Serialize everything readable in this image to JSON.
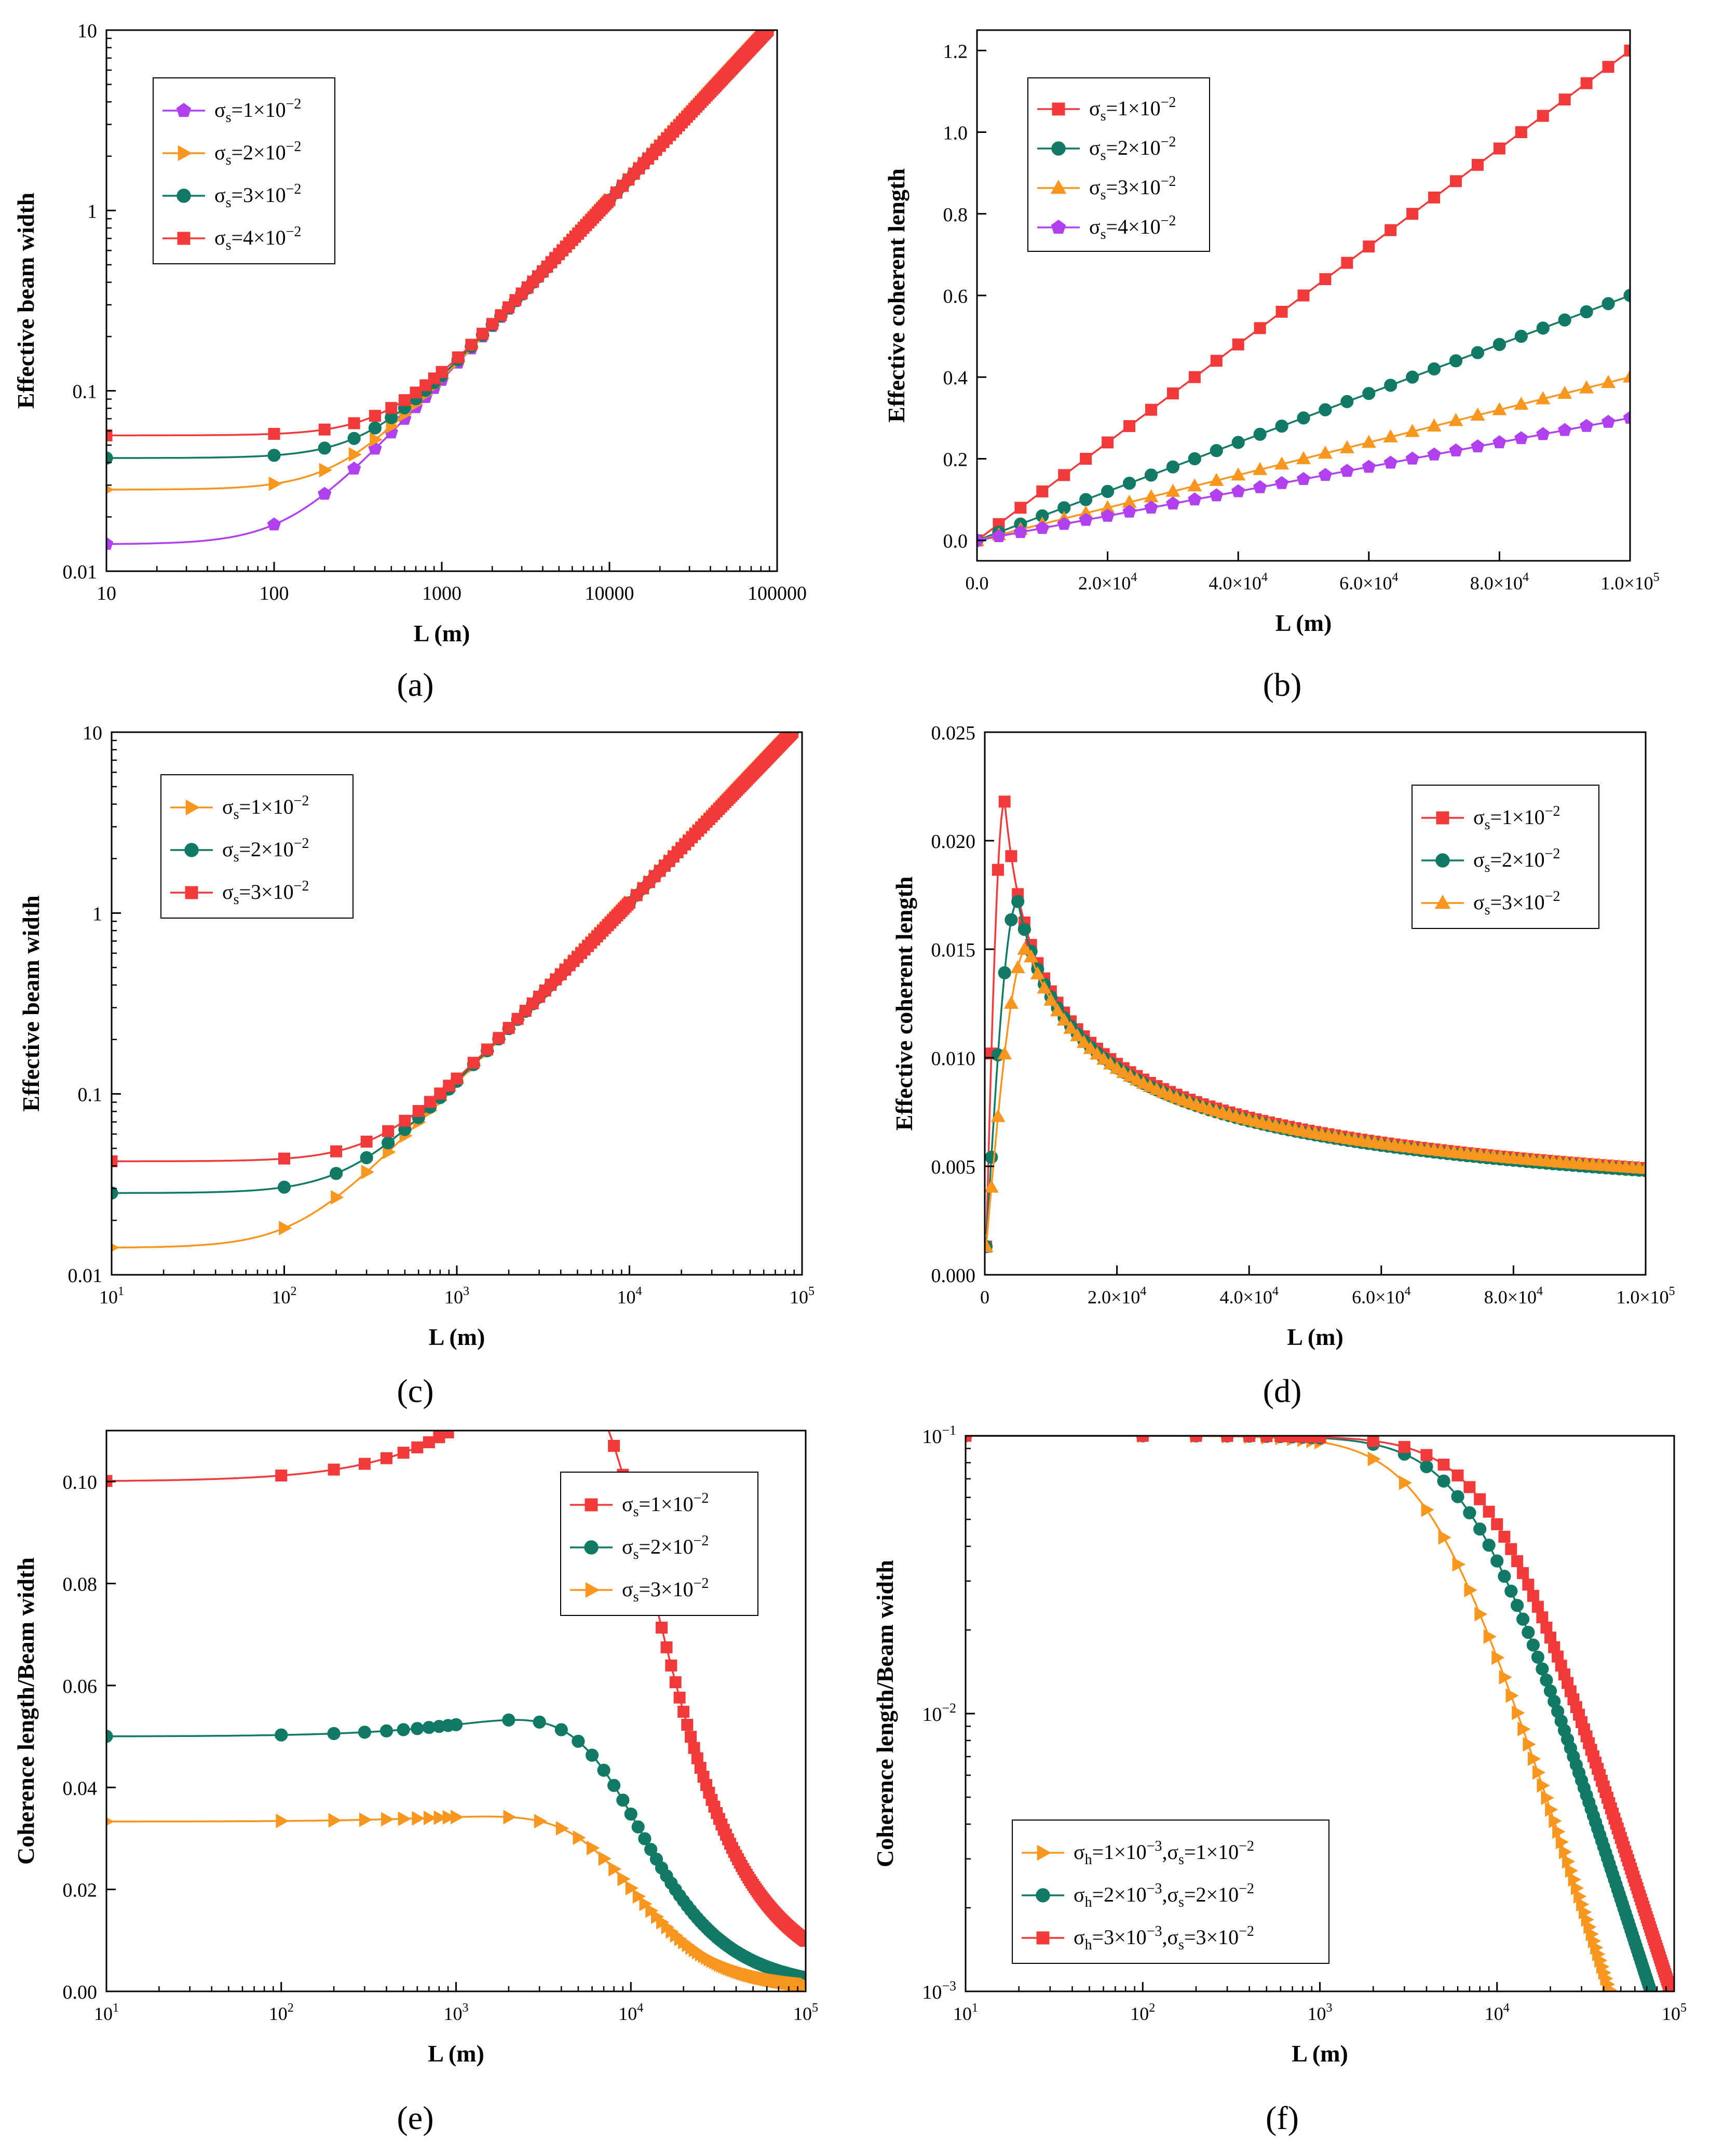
{
  "figure": {
    "panel_labels": [
      "(a)",
      "(b)",
      "(c)",
      "(d)",
      "(e)",
      "(f)"
    ]
  },
  "colors": {
    "purple": "#B040F0",
    "orange": "#F8961E",
    "teal": "#117A65",
    "red": "#F23A3A"
  },
  "chart_data": [
    {
      "id": "a",
      "type": "line",
      "xscale": "log",
      "yscale": "log",
      "xlim": [
        10,
        100000
      ],
      "ylim": [
        0.01,
        10
      ],
      "xticks": [
        10,
        100,
        1000,
        10000,
        100000
      ],
      "xtick_labels": [
        "10",
        "100",
        "1000",
        "10000",
        "100000"
      ],
      "yticks": [
        0.01,
        0.1,
        1,
        10
      ],
      "ytick_labels": [
        "0.01",
        "0.1",
        "1",
        "10"
      ],
      "xlabel": "L (m)",
      "ylabel": "Effective beam width",
      "legend_position": "top-left",
      "series": [
        {
          "name": "σs=1×10−2",
          "sym": "s",
          "coef": "1",
          "exp": "−2",
          "color": "#B040F0",
          "marker": "pentagon",
          "model": "beam",
          "w0": 0.0141,
          "k": 0.000114
        },
        {
          "name": "σs=2×10−2",
          "sym": "s",
          "coef": "2",
          "exp": "−2",
          "color": "#F8961E",
          "marker": "triangle-right",
          "model": "beam",
          "w0": 0.0283,
          "k": 0.000114
        },
        {
          "name": "σs=3×10−2",
          "sym": "s",
          "coef": "3",
          "exp": "−2",
          "color": "#117A65",
          "marker": "circle",
          "model": "beam",
          "w0": 0.0424,
          "k": 0.000114
        },
        {
          "name": "σs=4×10−2",
          "sym": "s",
          "coef": "4",
          "exp": "−2",
          "color": "#F23A3A",
          "marker": "square",
          "model": "beam",
          "w0": 0.0566,
          "k": 0.000114
        }
      ]
    },
    {
      "id": "b",
      "type": "line",
      "xscale": "linear",
      "yscale": "linear",
      "xlim": [
        0,
        100000
      ],
      "ylim": [
        -0.05,
        1.25
      ],
      "xticks": [
        0,
        20000,
        40000,
        60000,
        80000,
        100000
      ],
      "xtick_labels": [
        [
          "0.0",
          ""
        ],
        [
          "2.0×10",
          "4"
        ],
        [
          "4.0×10",
          "4"
        ],
        [
          "6.0×10",
          "4"
        ],
        [
          "8.0×10",
          "4"
        ],
        [
          "1.0×10",
          "5"
        ]
      ],
      "yticks": [
        0,
        0.2,
        0.4,
        0.6,
        0.8,
        1.0,
        1.2
      ],
      "ytick_labels": [
        "0.0",
        "0.2",
        "0.4",
        "0.6",
        "0.8",
        "1.0",
        "1.2"
      ],
      "xlabel": "L (m)",
      "ylabel": "Effective coherent length",
      "legend_position": "top-left",
      "series": [
        {
          "name": "σs=1×10−2",
          "sym": "s",
          "coef": "1",
          "exp": "−2",
          "color": "#F23A3A",
          "marker": "square",
          "model": "linear",
          "x": [
            0,
            100000
          ],
          "y": [
            0,
            1.2
          ]
        },
        {
          "name": "σs=2×10−2",
          "sym": "s",
          "coef": "2",
          "exp": "−2",
          "color": "#117A65",
          "marker": "circle",
          "model": "linear",
          "x": [
            0,
            100000
          ],
          "y": [
            0,
            0.6
          ]
        },
        {
          "name": "σs=3×10−2",
          "sym": "s",
          "coef": "3",
          "exp": "−2",
          "color": "#F8961E",
          "marker": "triangle-up",
          "model": "linear",
          "x": [
            0,
            100000
          ],
          "y": [
            0,
            0.4
          ]
        },
        {
          "name": "σs=4×10−2",
          "sym": "s",
          "coef": "4",
          "exp": "−2",
          "color": "#B040F0",
          "marker": "pentagon",
          "model": "linear",
          "x": [
            0,
            100000
          ],
          "y": [
            0,
            0.3
          ]
        }
      ]
    },
    {
      "id": "c",
      "type": "line",
      "xscale": "log",
      "yscale": "log",
      "xlim": [
        10,
        100000
      ],
      "ylim": [
        0.01,
        10
      ],
      "xticks": [
        10,
        100,
        1000,
        10000,
        100000
      ],
      "xtick_labels": [
        [
          "10",
          "1"
        ],
        [
          "10",
          "2"
        ],
        [
          "10",
          "3"
        ],
        [
          "10",
          "4"
        ],
        [
          "10",
          "5"
        ]
      ],
      "yticks": [
        0.01,
        0.1,
        1,
        10
      ],
      "ytick_labels": [
        "0.01",
        "0.1",
        "1",
        "10"
      ],
      "xlabel": "L (m)",
      "ylabel": "Effective beam width",
      "legend_position": "top-left",
      "series": [
        {
          "name": "σs=1×10−2",
          "sym": "s",
          "coef": "1",
          "exp": "−2",
          "color": "#F8961E",
          "marker": "triangle-right",
          "model": "beam",
          "w0": 0.0141,
          "k": 0.000114
        },
        {
          "name": "σs=2×10−2",
          "sym": "s",
          "coef": "2",
          "exp": "−2",
          "color": "#117A65",
          "marker": "circle",
          "model": "beam",
          "w0": 0.0283,
          "k": 0.000114
        },
        {
          "name": "σs=3×10−2",
          "sym": "s",
          "coef": "3",
          "exp": "−2",
          "color": "#F23A3A",
          "marker": "square",
          "model": "beam",
          "w0": 0.0424,
          "k": 0.000114
        }
      ]
    },
    {
      "id": "d",
      "type": "line",
      "xscale": "linear",
      "yscale": "linear",
      "xlim": [
        0,
        100000
      ],
      "ylim": [
        0,
        0.025
      ],
      "xticks": [
        0,
        20000,
        40000,
        60000,
        80000,
        100000
      ],
      "xtick_labels": [
        [
          "0",
          ""
        ],
        [
          "2.0×10",
          "4"
        ],
        [
          "4.0×10",
          "4"
        ],
        [
          "6.0×10",
          "4"
        ],
        [
          "8.0×10",
          "4"
        ],
        [
          "1.0×10",
          "5"
        ]
      ],
      "yticks": [
        0,
        0.005,
        0.01,
        0.015,
        0.02,
        0.025
      ],
      "ytick_labels": [
        "0.000",
        "0.005",
        "0.010",
        "0.015",
        "0.020",
        "0.025"
      ],
      "xlabel": "L (m)",
      "ylabel": "Effective coherent length",
      "legend_position": "top-right",
      "series": [
        {
          "name": "σs=1×10−2",
          "sym": "s",
          "coef": "1",
          "exp": "−2",
          "color": "#F23A3A",
          "marker": "square",
          "model": "peak",
          "peak_x": 3000,
          "peak_y": 0.0218,
          "x0": 200,
          "y0": 0.0013,
          "tail_x": 100000,
          "tail_y": 0.0049
        },
        {
          "name": "σs=2×10−2",
          "sym": "s",
          "coef": "2",
          "exp": "−2",
          "color": "#117A65",
          "marker": "circle",
          "model": "peak",
          "peak_x": 5000,
          "peak_y": 0.0172,
          "x0": 200,
          "y0": 0.0013,
          "tail_x": 100000,
          "tail_y": 0.0048
        },
        {
          "name": "σs=3×10−2",
          "sym": "s",
          "coef": "3",
          "exp": "−2",
          "color": "#F8961E",
          "marker": "triangle-up",
          "model": "peak",
          "peak_x": 6500,
          "peak_y": 0.0151,
          "x0": 200,
          "y0": 0.0013,
          "tail_x": 100000,
          "tail_y": 0.0049
        }
      ]
    },
    {
      "id": "e",
      "type": "line",
      "xscale": "log",
      "yscale": "linear",
      "xlim": [
        10,
        100000
      ],
      "ylim": [
        0,
        0.11
      ],
      "xticks": [
        10,
        100,
        1000,
        10000,
        100000
      ],
      "xtick_labels": [
        [
          "10",
          "1"
        ],
        [
          "10",
          "2"
        ],
        [
          "10",
          "3"
        ],
        [
          "10",
          "4"
        ],
        [
          "10",
          "5"
        ]
      ],
      "yticks": [
        0,
        0.02,
        0.04,
        0.06,
        0.08,
        0.1
      ],
      "ytick_labels": [
        "0.00",
        "0.02",
        "0.04",
        "0.06",
        "0.08",
        "0.10"
      ],
      "xlabel": "L (m)",
      "ylabel": "Coherence length/Beam width",
      "legend_position": "top-right",
      "series": [
        {
          "name": "σs=1×10−2",
          "sym": "s",
          "coef": "1",
          "exp": "−2",
          "color": "#F23A3A",
          "marker": "square",
          "model": "ratio",
          "r0": 0.1,
          "a": 0.000114,
          "c": 0.00012
        },
        {
          "name": "σs=2×10−2",
          "sym": "s",
          "coef": "2",
          "exp": "−2",
          "color": "#117A65",
          "marker": "circle",
          "model": "ratio",
          "r0": 0.05,
          "a": 0.000114,
          "c": 6e-05
        },
        {
          "name": "σs=3×10−2",
          "sym": "s",
          "coef": "3",
          "exp": "−2",
          "color": "#F8961E",
          "marker": "triangle-right",
          "model": "ratio",
          "r0": 0.0333,
          "a": 0.000114,
          "c": 4e-05
        }
      ]
    },
    {
      "id": "f",
      "type": "line",
      "xscale": "log",
      "yscale": "log",
      "xlim": [
        10,
        100000
      ],
      "ylim": [
        0.001,
        0.1
      ],
      "xticks": [
        10,
        100,
        1000,
        10000,
        100000
      ],
      "xtick_labels": [
        [
          "10",
          "1"
        ],
        [
          "10",
          "2"
        ],
        [
          "10",
          "3"
        ],
        [
          "10",
          "4"
        ],
        [
          "10",
          "5"
        ]
      ],
      "yticks": [
        0.001,
        0.01,
        0.1
      ],
      "ytick_labels": [
        [
          "10",
          "−3"
        ],
        [
          "10",
          "−2"
        ],
        [
          "10",
          "−1"
        ]
      ],
      "xlabel": "L (m)",
      "ylabel": "Coherence length/Beam width",
      "legend_position": "bottom-left",
      "series": [
        {
          "name": "σh=1×10−3,σs=1×10−2",
          "sym": "h",
          "coef": "1",
          "exp": "−3",
          "sym2": "s",
          "coef2": "1",
          "exp2": "−2",
          "color": "#F8961E",
          "marker": "triangle-right",
          "model": "ratio",
          "r0": 0.1,
          "a": 0.00023,
          "c": 0
        },
        {
          "name": "σh=2×10−3,σs=2×10−2",
          "sym": "h",
          "coef": "2",
          "exp": "−3",
          "sym2": "s",
          "coef2": "2",
          "exp2": "−2",
          "color": "#117A65",
          "marker": "circle",
          "model": "ratio",
          "r0": 0.1,
          "a": 0.000135,
          "c": 0
        },
        {
          "name": "σh=3×10−3,σs=3×10−2",
          "sym": "h",
          "coef": "3",
          "exp": "−3",
          "sym2": "s",
          "coef2": "3",
          "exp2": "−2",
          "color": "#F23A3A",
          "marker": "square",
          "model": "ratio",
          "r0": 0.1,
          "a": 0.000104,
          "c": 0
        }
      ]
    }
  ]
}
